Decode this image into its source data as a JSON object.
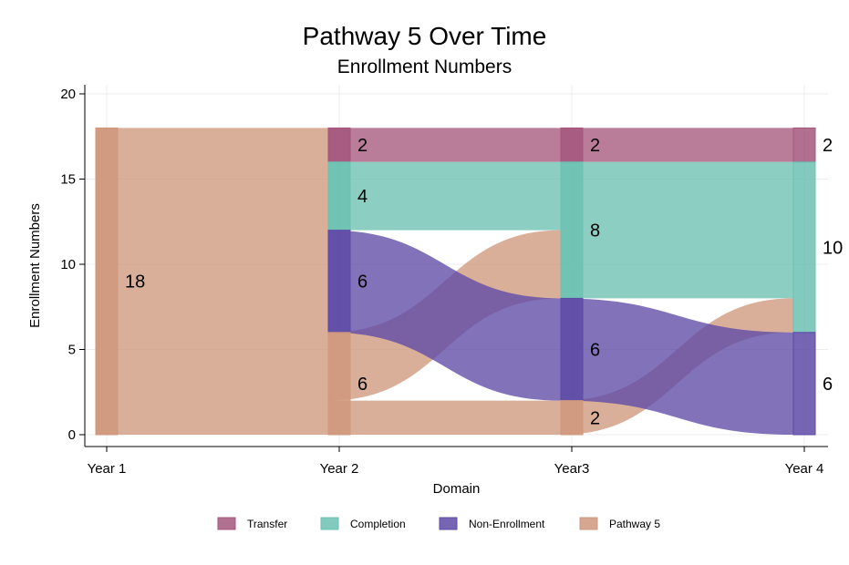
{
  "chart_data": {
    "type": "sankey",
    "title": "Pathway 5 Over Time",
    "subtitle": "Enrollment Numbers",
    "xlabel": "Domain",
    "ylabel": "Enrollment Numbers",
    "ylim": [
      0,
      20
    ],
    "yticks": [
      0,
      5,
      10,
      15,
      20
    ],
    "grid": true,
    "legend_position": "bottom",
    "stages": [
      "Year 1",
      "Year 2",
      "Year3",
      "Year 4"
    ],
    "categories": [
      {
        "name": "Transfer",
        "color": "#a5577c"
      },
      {
        "name": "Completion",
        "color": "#6cc1b1"
      },
      {
        "name": "Non-Enrollment",
        "color": "#5d4aa6"
      },
      {
        "name": "Pathway 5",
        "color": "#cf987c"
      }
    ],
    "nodes": [
      {
        "stage": 0,
        "category": "Pathway 5",
        "y0": 0,
        "y1": 18,
        "label": "18"
      },
      {
        "stage": 1,
        "category": "Transfer",
        "y0": 16,
        "y1": 18,
        "label": "2"
      },
      {
        "stage": 1,
        "category": "Completion",
        "y0": 12,
        "y1": 16,
        "label": "4"
      },
      {
        "stage": 1,
        "category": "Non-Enrollment",
        "y0": 6,
        "y1": 12,
        "label": "6"
      },
      {
        "stage": 1,
        "category": "Pathway 5",
        "y0": 0,
        "y1": 6,
        "label": "6"
      },
      {
        "stage": 2,
        "category": "Transfer",
        "y0": 16,
        "y1": 18,
        "label": "2"
      },
      {
        "stage": 2,
        "category": "Completion",
        "y0": 8,
        "y1": 16,
        "label": "8"
      },
      {
        "stage": 2,
        "category": "Non-Enrollment",
        "y0": 2,
        "y1": 8,
        "label": "6"
      },
      {
        "stage": 2,
        "category": "Pathway 5",
        "y0": 0,
        "y1": 2,
        "label": "2"
      },
      {
        "stage": 3,
        "category": "Transfer",
        "y0": 16,
        "y1": 18,
        "label": "2"
      },
      {
        "stage": 3,
        "category": "Completion",
        "y0": 6,
        "y1": 16,
        "label": "10"
      },
      {
        "stage": 3,
        "category": "Non-Enrollment",
        "y0": 0,
        "y1": 6,
        "label": "6"
      }
    ],
    "flows": [
      {
        "from_stage": 0,
        "category": "Pathway 5",
        "from": [
          0,
          18
        ],
        "to": [
          0,
          18
        ]
      },
      {
        "from_stage": 1,
        "category": "Transfer",
        "from": [
          16,
          18
        ],
        "to": [
          16,
          18
        ]
      },
      {
        "from_stage": 1,
        "category": "Completion",
        "from": [
          12,
          16
        ],
        "to": [
          12,
          16
        ]
      },
      {
        "from_stage": 1,
        "category": "Pathway 5",
        "from": [
          2,
          6
        ],
        "to": [
          8,
          12
        ]
      },
      {
        "from_stage": 1,
        "category": "Non-Enrollment",
        "from": [
          6,
          12
        ],
        "to": [
          2,
          8
        ]
      },
      {
        "from_stage": 1,
        "category": "Pathway 5",
        "from": [
          0,
          2
        ],
        "to": [
          0,
          2
        ]
      },
      {
        "from_stage": 2,
        "category": "Transfer",
        "from": [
          16,
          18
        ],
        "to": [
          16,
          18
        ]
      },
      {
        "from_stage": 2,
        "category": "Completion",
        "from": [
          8,
          16
        ],
        "to": [
          8,
          16
        ]
      },
      {
        "from_stage": 2,
        "category": "Pathway 5",
        "from": [
          0,
          2
        ],
        "to": [
          6,
          8
        ]
      },
      {
        "from_stage": 2,
        "category": "Non-Enrollment",
        "from": [
          2,
          8
        ],
        "to": [
          0,
          6
        ]
      }
    ]
  }
}
